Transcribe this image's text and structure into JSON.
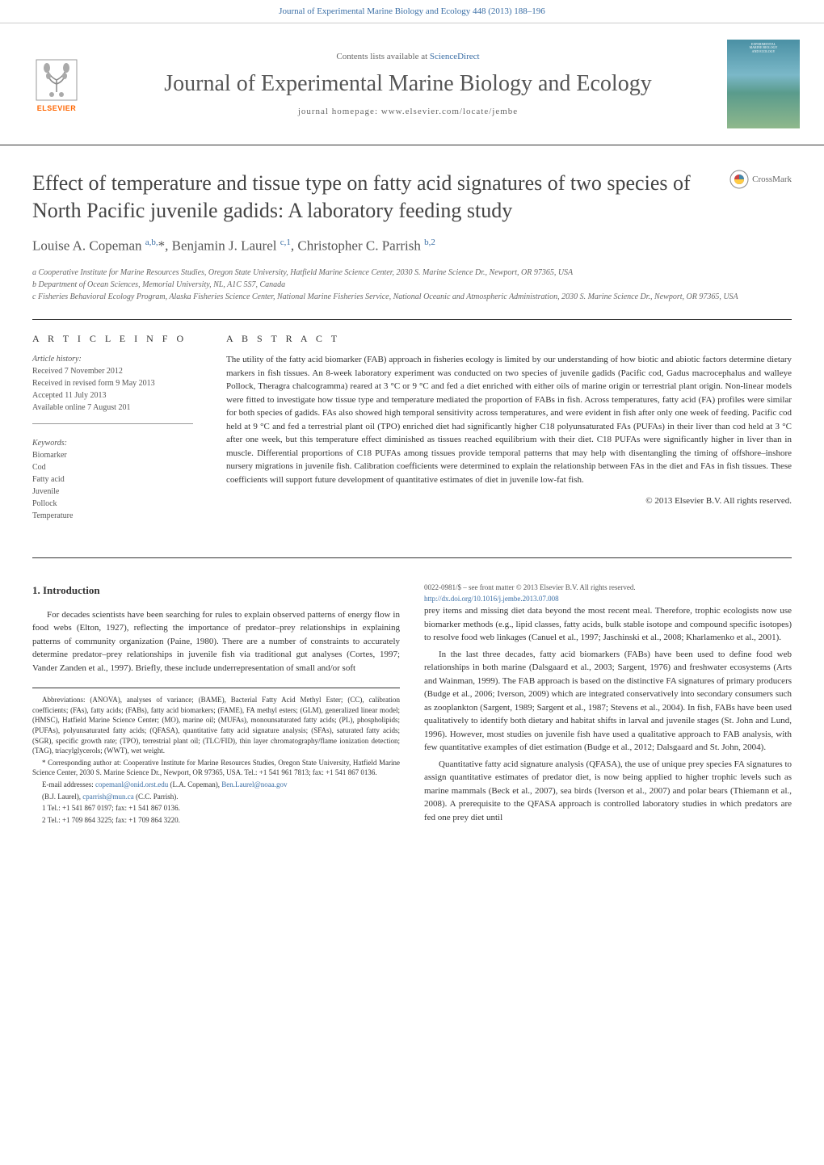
{
  "header_bar": {
    "journal_ref": "Journal of Experimental Marine Biology and Ecology 448 (2013) 188–196"
  },
  "journal_header": {
    "contents_prefix": "Contents lists available at ",
    "contents_link": "ScienceDirect",
    "journal_name": "Journal of Experimental Marine Biology and Ecology",
    "homepage": "journal homepage: www.elsevier.com/locate/jembe",
    "elsevier_label": "ELSEVIER",
    "cover_line1": "EXPERIMENTAL",
    "cover_line2": "MARINE BIOLOGY",
    "cover_line3": "AND ECOLOGY"
  },
  "crossmark_label": "CrossMark",
  "article": {
    "title": "Effect of temperature and tissue type on fatty acid signatures of two species of North Pacific juvenile gadids: A laboratory feeding study",
    "authors_html": "Louise A. Copeman <sup>a,b,</sup>*, Benjamin J. Laurel <sup>c,1</sup>, Christopher C. Parrish <sup>b,2</sup>",
    "affiliations": {
      "a": "a  Cooperative Institute for Marine Resources Studies, Oregon State University, Hatfield Marine Science Center, 2030 S. Marine Science Dr., Newport, OR 97365, USA",
      "b": "b  Department of Ocean Sciences, Memorial University, NL, A1C 5S7, Canada",
      "c": "c  Fisheries Behavioral Ecology Program, Alaska Fisheries Science Center, National Marine Fisheries Service, National Oceanic and Atmospheric Administration, 2030 S. Marine Science Dr., Newport, OR 97365, USA"
    }
  },
  "info": {
    "heading": "A R T I C L E   I N F O",
    "history_title": "Article history:",
    "history": [
      "Received 7 November 2012",
      "Received in revised form 9 May 2013",
      "Accepted 11 July 2013",
      "Available online 7 August 201"
    ],
    "keywords_title": "Keywords:",
    "keywords": [
      "Biomarker",
      "Cod",
      "Fatty acid",
      "Juvenile",
      "Pollock",
      "Temperature"
    ]
  },
  "abstract": {
    "heading": "A B S T R A C T",
    "text": "The utility of the fatty acid biomarker (FAB) approach in fisheries ecology is limited by our understanding of how biotic and abiotic factors determine dietary markers in fish tissues. An 8-week laboratory experiment was conducted on two species of juvenile gadids (Pacific cod, Gadus macrocephalus and walleye Pollock, Theragra chalcogramma) reared at 3 °C or 9 °C and fed a diet enriched with either oils of marine origin or terrestrial plant origin. Non-linear models were fitted to investigate how tissue type and temperature mediated the proportion of FABs in fish. Across temperatures, fatty acid (FA) profiles were similar for both species of gadids. FAs also showed high temporal sensitivity across temperatures, and were evident in fish after only one week of feeding. Pacific cod held at 9 °C and fed a terrestrial plant oil (TPO) enriched diet had significantly higher C18 polyunsaturated FAs (PUFAs) in their liver than cod held at 3 °C after one week, but this temperature effect diminished as tissues reached equilibrium with their diet. C18 PUFAs were significantly higher in liver than in muscle. Differential proportions of C18 PUFAs among tissues provide temporal patterns that may help with disentangling the timing of offshore–inshore nursery migrations in juvenile fish. Calibration coefficients were determined to explain the relationship between FAs in the diet and FAs in fish tissues. These coefficients will support future development of quantitative estimates of diet in juvenile low-fat fish.",
    "copyright": "© 2013 Elsevier B.V. All rights reserved."
  },
  "intro": {
    "heading": "1. Introduction",
    "p1": "For decades scientists have been searching for rules to explain observed patterns of energy flow in food webs (Elton, 1927), reflecting the importance of predator–prey relationships in explaining patterns of community organization (Paine, 1980). There are a number of constraints to accurately determine predator–prey relationships in juvenile fish via traditional gut analyses (Cortes, 1997; Vander Zanden et al., 1997). Briefly, these include underrepresentation of small and/or soft",
    "p2": "prey items and missing diet data beyond the most recent meal. Therefore, trophic ecologists now use biomarker methods (e.g., lipid classes, fatty acids, bulk stable isotope and compound specific isotopes) to resolve food web linkages (Canuel et al., 1997; Jaschinski et al., 2008; Kharlamenko et al., 2001).",
    "p3": "In the last three decades, fatty acid biomarkers (FABs) have been used to define food web relationships in both marine (Dalsgaard et al., 2003; Sargent, 1976) and freshwater ecosystems (Arts and Wainman, 1999). The FAB approach is based on the distinctive FA signatures of primary producers (Budge et al., 2006; Iverson, 2009) which are integrated conservatively into secondary consumers such as zooplankton (Sargent, 1989; Sargent et al., 1987; Stevens et al., 2004). In fish, FABs have been used qualitatively to identify both dietary and habitat shifts in larval and juvenile stages (St. John and Lund, 1996). However, most studies on juvenile fish have used a qualitative approach to FAB analysis, with few quantitative examples of diet estimation (Budge et al., 2012; Dalsgaard and St. John, 2004).",
    "p4": "Quantitative fatty acid signature analysis (QFASA), the use of unique prey species FA signatures to assign quantitative estimates of predator diet, is now being applied to higher trophic levels such as marine mammals (Beck et al., 2007), sea birds (Iverson et al., 2007) and polar bears (Thiemann et al., 2008). A prerequisite to the QFASA approach is controlled laboratory studies in which predators are fed one prey diet until"
  },
  "footnotes": {
    "abbrev": "Abbreviations: (ANOVA), analyses of variance; (BAME), Bacterial Fatty Acid Methyl Ester; (CC), calibration coefficients; (FAs), fatty acids; (FABs), fatty acid biomarkers; (FAME), FA methyl esters; (GLM), generalized linear model; (HMSC), Hatfield Marine Science Center; (MO), marine oil; (MUFAs), monounsaturated fatty acids; (PL), phospholipids; (PUFAs), polyunsaturated fatty acids; (QFASA), quantitative fatty acid signature analysis; (SFAs), saturated fatty acids; (SGR), specific growth rate; (TPO), terrestrial plant oil; (TLC/FID), thin layer chromatography/flame ionization detection; (TAG), triacylglycerols; (WWT), wet weight.",
    "corresp": "* Corresponding author at: Cooperative Institute for Marine Resources Studies, Oregon State University, Hatfield Marine Science Center, 2030 S. Marine Science Dr., Newport, OR 97365, USA. Tel.: +1 541 961 7813; fax: +1 541 867 0136.",
    "emails_label": "E-mail addresses: ",
    "email1": "copemanl@onid.orst.edu",
    "email1_who": " (L.A. Copeman), ",
    "email2": "Ben.Laurel@noaa.gov",
    "emails_rest": "(B.J. Laurel), ",
    "email3": "cparrish@mun.ca",
    "email3_who": " (C.C. Parrish).",
    "tel1": "1  Tel.: +1 541 867 0197; fax: +1 541 867 0136.",
    "tel2": "2  Tel.: +1 709 864 3225; fax: +1 709 864 3220."
  },
  "footer": {
    "issn": "0022-0981/$ – see front matter © 2013 Elsevier B.V. All rights reserved.",
    "doi": "http://dx.doi.org/10.1016/j.jembe.2013.07.008"
  },
  "colors": {
    "link": "#3a6ea5",
    "elsevier_orange": "#ff6600",
    "text": "#333333",
    "rule": "#333333"
  }
}
